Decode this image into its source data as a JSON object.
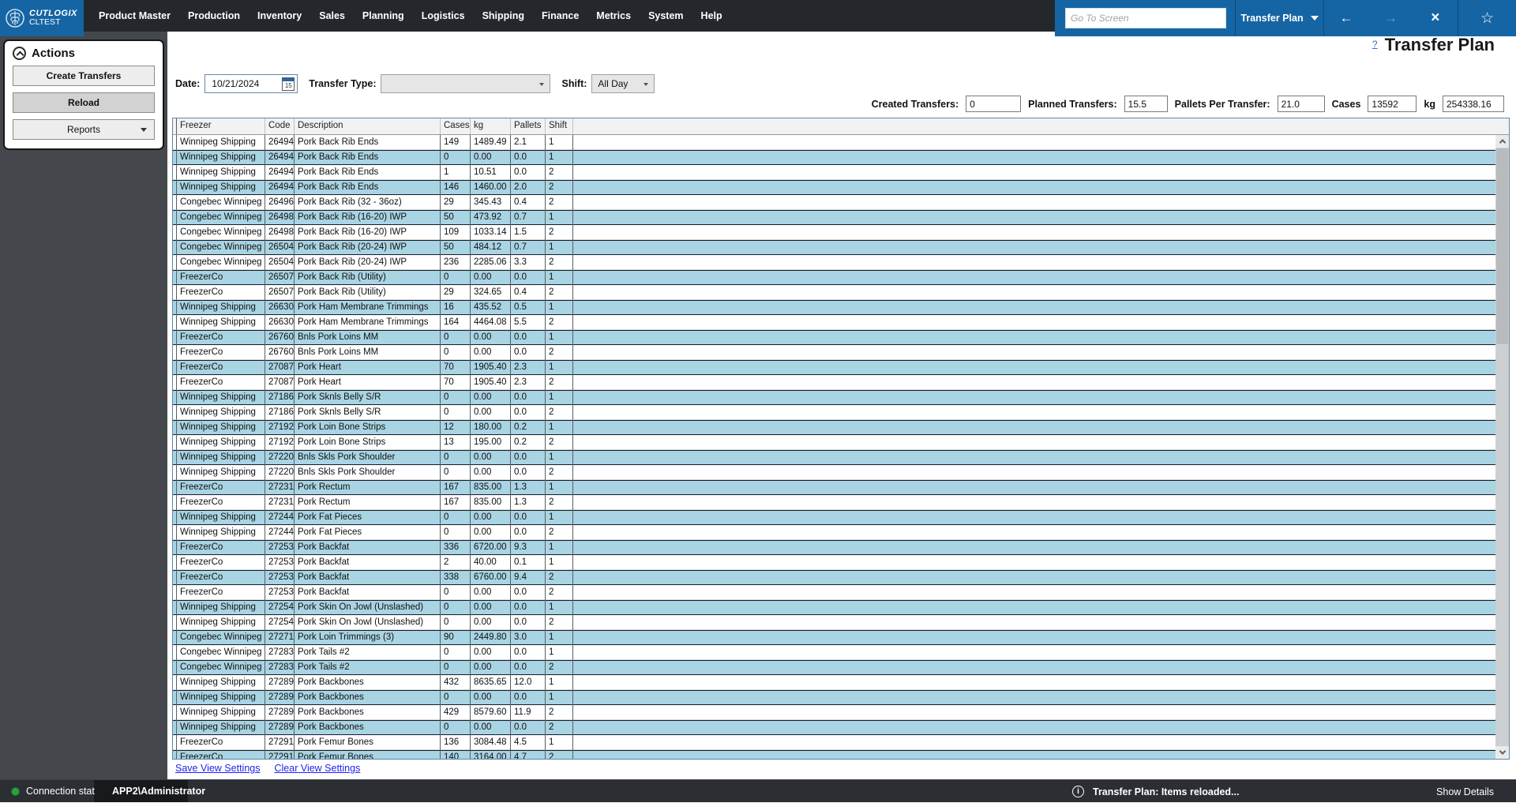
{
  "topbar": {
    "logo_line1": "CUTLOGIX",
    "logo_line2": "CLTEST",
    "menus": [
      "Product Master",
      "Production",
      "Inventory",
      "Sales",
      "Planning",
      "Logistics",
      "Shipping",
      "Finance",
      "Metrics",
      "System",
      "Help"
    ],
    "goto_placeholder": "Go To Screen",
    "screen_selector": "Transfer Plan",
    "back_arrow": "←",
    "forward_arrow": "→",
    "close_glyph": "×",
    "star_glyph": "☆"
  },
  "sidebar": {
    "title": "Actions",
    "buttons": [
      "Create Transfers",
      "Reload",
      "Reports"
    ]
  },
  "page": {
    "help": "?",
    "title": "Transfer Plan"
  },
  "filters": {
    "date_label": "Date:",
    "date_value": "10/21/2024",
    "calendar_icon_day": "15",
    "transfer_type_label": "Transfer Type:",
    "transfer_type_value": "",
    "shift_label": "Shift:",
    "shift_value": "All Day"
  },
  "stats": [
    {
      "label": "Created Transfers:",
      "value": "0"
    },
    {
      "label": "Planned Transfers:",
      "value": "15.5"
    },
    {
      "label": "Pallets Per Transfer:",
      "value": "21.0"
    },
    {
      "label": "Cases",
      "value": "13592"
    },
    {
      "label": "kg",
      "value": "254338.16"
    }
  ],
  "table": {
    "columns": [
      "Freezer",
      "Code",
      "Description",
      "Cases",
      "kg",
      "Pallets",
      "Shift"
    ],
    "rows": [
      [
        "Winnipeg Shipping",
        "26494",
        "Pork Back Rib Ends",
        "149",
        "1489.49",
        "2.1",
        "1"
      ],
      [
        "Winnipeg Shipping",
        "26494",
        "Pork Back Rib Ends",
        "0",
        "0.00",
        "0.0",
        "1"
      ],
      [
        "Winnipeg Shipping",
        "26494",
        "Pork Back Rib Ends",
        "1",
        "10.51",
        "0.0",
        "2"
      ],
      [
        "Winnipeg Shipping",
        "26494",
        "Pork Back Rib Ends",
        "146",
        "1460.00",
        "2.0",
        "2"
      ],
      [
        "Congebec Winnipeg",
        "26496",
        "Pork Back Rib (32 - 36oz)",
        "29",
        "345.43",
        "0.4",
        "2"
      ],
      [
        "Congebec Winnipeg",
        "26498",
        "Pork Back Rib (16-20) IWP",
        "50",
        "473.92",
        "0.7",
        "1"
      ],
      [
        "Congebec Winnipeg",
        "26498",
        "Pork Back Rib (16-20) IWP",
        "109",
        "1033.14",
        "1.5",
        "2"
      ],
      [
        "Congebec Winnipeg",
        "26504",
        "Pork Back Rib (20-24) IWP",
        "50",
        "484.12",
        "0.7",
        "1"
      ],
      [
        "Congebec Winnipeg",
        "26504",
        "Pork Back Rib (20-24) IWP",
        "236",
        "2285.06",
        "3.3",
        "2"
      ],
      [
        "FreezerCo",
        "26507",
        "Pork Back Rib (Utility)",
        "0",
        "0.00",
        "0.0",
        "1"
      ],
      [
        "FreezerCo",
        "26507",
        "Pork Back Rib (Utility)",
        "29",
        "324.65",
        "0.4",
        "2"
      ],
      [
        "Winnipeg Shipping",
        "26630",
        "Pork Ham Membrane Trimmings",
        "16",
        "435.52",
        "0.5",
        "1"
      ],
      [
        "Winnipeg Shipping",
        "26630",
        "Pork Ham Membrane Trimmings",
        "164",
        "4464.08",
        "5.5",
        "2"
      ],
      [
        "FreezerCo",
        "26760",
        "Bnls Pork Loins MM",
        "0",
        "0.00",
        "0.0",
        "1"
      ],
      [
        "FreezerCo",
        "26760",
        "Bnls Pork Loins MM",
        "0",
        "0.00",
        "0.0",
        "2"
      ],
      [
        "FreezerCo",
        "27087",
        "Pork Heart",
        "70",
        "1905.40",
        "2.3",
        "1"
      ],
      [
        "FreezerCo",
        "27087",
        "Pork Heart",
        "70",
        "1905.40",
        "2.3",
        "2"
      ],
      [
        "Winnipeg Shipping",
        "27186",
        "Pork Sknls Belly S/R",
        "0",
        "0.00",
        "0.0",
        "1"
      ],
      [
        "Winnipeg Shipping",
        "27186",
        "Pork Sknls Belly S/R",
        "0",
        "0.00",
        "0.0",
        "2"
      ],
      [
        "Winnipeg Shipping",
        "27192",
        "Pork Loin Bone Strips",
        "12",
        "180.00",
        "0.2",
        "1"
      ],
      [
        "Winnipeg Shipping",
        "27192",
        "Pork Loin Bone Strips",
        "13",
        "195.00",
        "0.2",
        "2"
      ],
      [
        "Winnipeg Shipping",
        "27220",
        "Bnls Skls Pork Shoulder",
        "0",
        "0.00",
        "0.0",
        "1"
      ],
      [
        "Winnipeg Shipping",
        "27220",
        "Bnls Skls Pork Shoulder",
        "0",
        "0.00",
        "0.0",
        "2"
      ],
      [
        "FreezerCo",
        "27231",
        "Pork Rectum",
        "167",
        "835.00",
        "1.3",
        "1"
      ],
      [
        "FreezerCo",
        "27231",
        "Pork Rectum",
        "167",
        "835.00",
        "1.3",
        "2"
      ],
      [
        "Winnipeg Shipping",
        "27244",
        "Pork Fat Pieces",
        "0",
        "0.00",
        "0.0",
        "1"
      ],
      [
        "Winnipeg Shipping",
        "27244",
        "Pork Fat Pieces",
        "0",
        "0.00",
        "0.0",
        "2"
      ],
      [
        "FreezerCo",
        "27253",
        "Pork Backfat",
        "336",
        "6720.00",
        "9.3",
        "1"
      ],
      [
        "FreezerCo",
        "27253",
        "Pork Backfat",
        "2",
        "40.00",
        "0.1",
        "1"
      ],
      [
        "FreezerCo",
        "27253",
        "Pork Backfat",
        "338",
        "6760.00",
        "9.4",
        "2"
      ],
      [
        "FreezerCo",
        "27253",
        "Pork Backfat",
        "0",
        "0.00",
        "0.0",
        "2"
      ],
      [
        "Winnipeg Shipping",
        "27254",
        "Pork Skin On Jowl (Unslashed)",
        "0",
        "0.00",
        "0.0",
        "1"
      ],
      [
        "Winnipeg Shipping",
        "27254",
        "Pork Skin On Jowl (Unslashed)",
        "0",
        "0.00",
        "0.0",
        "2"
      ],
      [
        "Congebec Winnipeg",
        "27271",
        "Pork Loin Trimmings (3)",
        "90",
        "2449.80",
        "3.0",
        "1"
      ],
      [
        "Congebec Winnipeg",
        "27283",
        "Pork Tails #2",
        "0",
        "0.00",
        "0.0",
        "1"
      ],
      [
        "Congebec Winnipeg",
        "27283",
        "Pork Tails #2",
        "0",
        "0.00",
        "0.0",
        "2"
      ],
      [
        "Winnipeg Shipping",
        "27289",
        "Pork Backbones",
        "432",
        "8635.65",
        "12.0",
        "1"
      ],
      [
        "Winnipeg Shipping",
        "27289",
        "Pork Backbones",
        "0",
        "0.00",
        "0.0",
        "1"
      ],
      [
        "Winnipeg Shipping",
        "27289",
        "Pork Backbones",
        "429",
        "8579.60",
        "11.9",
        "2"
      ],
      [
        "Winnipeg Shipping",
        "27289",
        "Pork Backbones",
        "0",
        "0.00",
        "0.0",
        "2"
      ],
      [
        "FreezerCo",
        "27291",
        "Pork Femur Bones",
        "136",
        "3084.48",
        "4.5",
        "1"
      ],
      [
        "FreezerCo",
        "27291",
        "Pork Femur Bones",
        "140",
        "3164.00",
        "4.7",
        "2"
      ]
    ]
  },
  "footer_links": [
    "Save View Settings",
    "Clear View Settings"
  ],
  "statusbar": {
    "connection": "Connection status",
    "user": "APP2\\Administrator",
    "message": "Transfer Plan: Items reloaded...",
    "details": "Show Details"
  },
  "colors": {
    "brand_blue": "#1565a4",
    "topbar_dark": "#24282c",
    "sidebar_gray": "#44484d",
    "row_highlight": "#a9d4e3",
    "status_green": "#2e9e3e",
    "link_blue": "#2222ee"
  }
}
